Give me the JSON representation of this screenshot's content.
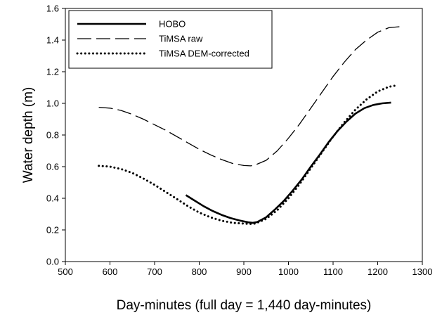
{
  "chart_data": {
    "type": "line",
    "title": "",
    "xlabel": "Day-minutes (full day = 1,440 day-minutes)",
    "ylabel": "Water depth (m)",
    "xlim": [
      500,
      1300
    ],
    "ylim": [
      0.0,
      1.6
    ],
    "xticks": [
      500,
      600,
      700,
      800,
      900,
      1000,
      1100,
      1200,
      1300
    ],
    "yticks": [
      0.0,
      0.2,
      0.4,
      0.6,
      0.8,
      1.0,
      1.2,
      1.4,
      1.6
    ],
    "xtick_labels": [
      "500",
      "600",
      "700",
      "800",
      "900",
      "1000",
      "1100",
      "1200",
      "1300"
    ],
    "ytick_labels": [
      "0.0",
      "0.2",
      "0.4",
      "0.6",
      "0.8",
      "1.0",
      "1.2",
      "1.4",
      "1.6"
    ],
    "grid": false,
    "legend_position": "top-left",
    "series": [
      {
        "name": "HOBO",
        "style": "solid",
        "color": "#000000",
        "x": [
          770,
          790,
          810,
          830,
          850,
          870,
          890,
          910,
          920,
          930,
          950,
          970,
          990,
          1010,
          1030,
          1050,
          1070,
          1090,
          1110,
          1130,
          1150,
          1170,
          1190,
          1210,
          1230
        ],
        "y": [
          0.42,
          0.385,
          0.35,
          0.32,
          0.295,
          0.275,
          0.26,
          0.248,
          0.245,
          0.25,
          0.28,
          0.33,
          0.385,
          0.45,
          0.52,
          0.6,
          0.675,
          0.755,
          0.825,
          0.885,
          0.935,
          0.97,
          0.99,
          1.0,
          1.005
        ]
      },
      {
        "name": "TiMSA raw",
        "style": "dashed",
        "color": "#000000",
        "x": [
          575,
          600,
          625,
          650,
          675,
          700,
          725,
          750,
          775,
          800,
          825,
          850,
          875,
          900,
          915,
          925,
          950,
          975,
          1000,
          1025,
          1050,
          1075,
          1100,
          1125,
          1150,
          1175,
          1200,
          1225,
          1250
        ],
        "y": [
          0.975,
          0.97,
          0.955,
          0.93,
          0.9,
          0.865,
          0.83,
          0.79,
          0.75,
          0.71,
          0.675,
          0.645,
          0.62,
          0.607,
          0.605,
          0.61,
          0.64,
          0.7,
          0.78,
          0.87,
          0.97,
          1.07,
          1.17,
          1.26,
          1.34,
          1.4,
          1.45,
          1.478,
          1.485
        ]
      },
      {
        "name": "TiMSA DEM-corrected",
        "style": "dotted",
        "color": "#000000",
        "x": [
          575,
          600,
          625,
          650,
          675,
          700,
          725,
          750,
          775,
          800,
          825,
          850,
          875,
          900,
          915,
          925,
          950,
          975,
          1000,
          1025,
          1050,
          1075,
          1100,
          1125,
          1150,
          1175,
          1200,
          1225,
          1245
        ],
        "y": [
          0.605,
          0.6,
          0.585,
          0.56,
          0.525,
          0.485,
          0.44,
          0.395,
          0.35,
          0.31,
          0.28,
          0.258,
          0.245,
          0.24,
          0.238,
          0.24,
          0.27,
          0.325,
          0.4,
          0.49,
          0.59,
          0.69,
          0.79,
          0.88,
          0.96,
          1.025,
          1.075,
          1.105,
          1.115
        ]
      }
    ]
  }
}
